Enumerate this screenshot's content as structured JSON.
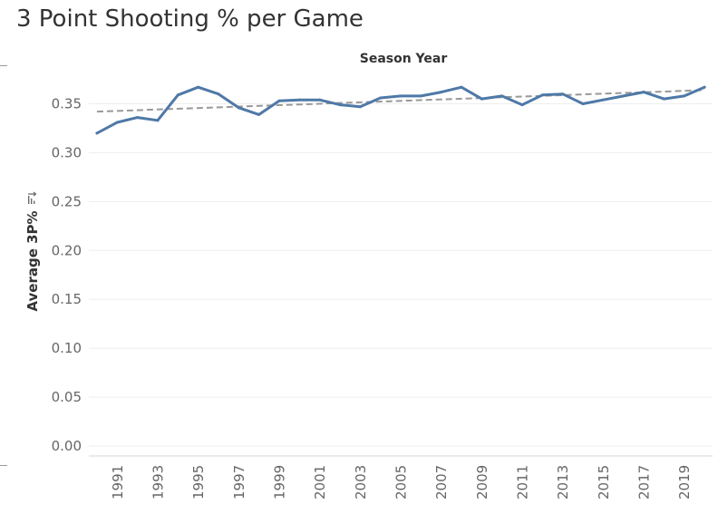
{
  "title": "3 Point Shooting % per Game",
  "chart_data": {
    "type": "line",
    "title": "3 Point Shooting % per Game",
    "xlabel": "Season Year",
    "ylabel": "Average 3P%",
    "ylim": [
      0,
      0.37
    ],
    "y_ticks": [
      "0.00",
      "0.05",
      "0.10",
      "0.15",
      "0.20",
      "0.25",
      "0.30",
      "0.35"
    ],
    "x_ticks": [
      "1991",
      "1993",
      "1995",
      "1997",
      "1999",
      "2001",
      "2003",
      "2005",
      "2007",
      "2009",
      "2011",
      "2013",
      "2015",
      "2017",
      "2019"
    ],
    "x_label_position": "top",
    "grid": "horizontal",
    "series": [
      {
        "color": "#4e79a7",
        "x": [
          1990,
          1991,
          1992,
          1993,
          1994,
          1995,
          1996,
          1997,
          1998,
          1999,
          2000,
          2001,
          2002,
          2003,
          2004,
          2005,
          2006,
          2007,
          2008,
          2009,
          2010,
          2011,
          2012,
          2013,
          2014,
          2015,
          2016,
          2017,
          2018,
          2019,
          2020
        ],
        "values": [
          0.32,
          0.331,
          0.336,
          0.333,
          0.359,
          0.367,
          0.36,
          0.346,
          0.339,
          0.353,
          0.354,
          0.354,
          0.349,
          0.347,
          0.356,
          0.358,
          0.358,
          0.362,
          0.367,
          0.355,
          0.358,
          0.349,
          0.359,
          0.36,
          0.35,
          0.354,
          0.358,
          0.362,
          0.355,
          0.358,
          0.367
        ]
      }
    ],
    "trend_line": {
      "color": "#999999",
      "style": "dashed",
      "x": [
        1990,
        2020
      ],
      "values": [
        0.342,
        0.364
      ]
    }
  }
}
